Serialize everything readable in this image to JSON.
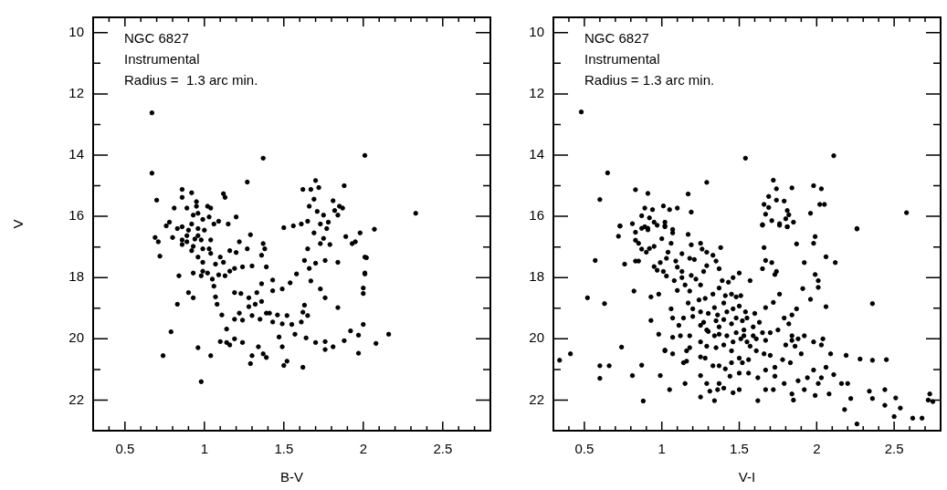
{
  "chart_data": [
    {
      "type": "scatter",
      "xlabel": "B-V",
      "ylabel": "V",
      "annotations": [
        "NGC 6827",
        "Instrumental",
        "Radius =  1.3 arc min."
      ],
      "color": "#000000",
      "marker": "circle",
      "grid": false,
      "legend": false,
      "xlim": [
        0.3,
        2.8
      ],
      "ylim": [
        23,
        9.5
      ],
      "xticks": [
        {
          "value": 0.3,
          "label": null
        },
        {
          "value": 0.4,
          "label": null
        },
        0.5,
        {
          "value": 0.6,
          "label": null
        },
        {
          "value": 0.7,
          "label": null
        },
        {
          "value": 0.8,
          "label": null
        },
        {
          "value": 0.9,
          "label": null
        },
        1,
        {
          "value": 1.1,
          "label": null
        },
        {
          "value": 1.2,
          "label": null
        },
        {
          "value": 1.3,
          "label": null
        },
        {
          "value": 1.4,
          "label": null
        },
        1.5,
        {
          "value": 1.6,
          "label": null
        },
        {
          "value": 1.7,
          "label": null
        },
        {
          "value": 1.8,
          "label": null
        },
        {
          "value": 1.9,
          "label": null
        },
        2,
        {
          "value": 2.1,
          "label": null
        },
        {
          "value": 2.2,
          "label": null
        },
        {
          "value": 2.3,
          "label": null
        },
        {
          "value": 2.4,
          "label": null
        },
        2.5,
        {
          "value": 2.6,
          "label": null
        },
        {
          "value": 2.7,
          "label": null
        }
      ],
      "yticks": [
        10,
        {
          "value": 11,
          "label": null
        },
        12,
        {
          "value": 13,
          "label": null
        },
        14,
        {
          "value": 15,
          "label": null
        },
        16,
        {
          "value": 17,
          "label": null
        },
        18,
        {
          "value": 19,
          "label": null
        },
        20,
        {
          "value": 21,
          "label": null
        },
        22
      ],
      "x": [
        0.67,
        0.67,
        1.37,
        2.01,
        1.27,
        0.7,
        0.86,
        0.92,
        1.12,
        1.7,
        1.62,
        1.67,
        1.72,
        1.88,
        2.33,
        2.07,
        0.81,
        1.69,
        1.66,
        1.71,
        1.75,
        1.65,
        1.73,
        1.78,
        1.69,
        1.75,
        1.81,
        1.82,
        1.85,
        1.87,
        1.77,
        1.73,
        1.61,
        1.5,
        1.56,
        1.84,
        1.98,
        2.02,
        2.01,
        2.0,
        1.95,
        0.69,
        0.72,
        0.84,
        0.83,
        0.79,
        0.74,
        0.96,
        0.98,
        1.04,
        0.9,
        0.93,
        1.1,
        1.14,
        1.16,
        1.19,
        1.24,
        1.29,
        1.3,
        1.34,
        1.37,
        1.39,
        1.47,
        1.49,
        1.5,
        1.52,
        1.62,
        1.57,
        1.64,
        1.7,
        1.76,
        1.76,
        1.81,
        1.88,
        1.92,
        1.97,
        1.97,
        2.08,
        2.16,
        2.0,
        2.0,
        2.01,
        2.01,
        1.93,
        1.89,
        1.84,
        1.79,
        1.76,
        1.73,
        1.76,
        1.84,
        1.7,
        1.65,
        1.66,
        1.63,
        1.67,
        1.58,
        1.54,
        1.63,
        1.65,
        1.61,
        1.62,
        1.55,
        1.49,
        1.43,
        1.39,
        1.35,
        1.3,
        1.24,
        1.22,
        1.19,
        1.14,
        1.11,
        1.08,
        1.07,
        1.06,
        1.13,
        1.19,
        1.24,
        1.3,
        1.36,
        1.39,
        1.43,
        1.36,
        1.33,
        1.28,
        1.23,
        1.19,
        1.43,
        1.49,
        1.36,
        1.32,
        1.28,
        1.41,
        1.46,
        1.52,
        1.22,
        1.27,
        1.29,
        1.37,
        1.38,
        1.16,
        1.2,
        1.1,
        1.04,
        0.99,
        0.96,
        0.92,
        0.86,
        0.89,
        0.94,
        0.98,
        1.04,
        1.0,
        0.96,
        0.9,
        0.86,
        1.02,
        0.98,
        1.05,
        1.09,
        1.12,
        1.16,
        0.93,
        0.99,
        1.07,
        1.03,
        0.89,
        0.93,
        0.96,
        0.99,
        0.92,
        0.86,
        0.83,
        1.03,
        1.04,
        1.02,
        0.95,
        0.96,
        0.89,
        0.93,
        0.99,
        1.06,
        0.8,
        0.78,
        0.76,
        1.09,
        1.15,
        1.2,
        1.13,
        0.71,
        0.86,
        0.95
      ],
      "values": [
        12.62,
        14.59,
        14.1,
        14.01,
        14.88,
        15.47,
        15.12,
        15.23,
        15.26,
        14.83,
        15.12,
        15.12,
        15.06,
        15.0,
        15.9,
        16.42,
        15.73,
        15.44,
        15.67,
        15.84,
        15.96,
        16.16,
        16.25,
        16.19,
        16.54,
        16.72,
        15.49,
        15.81,
        15.67,
        15.73,
        16.4,
        16.89,
        16.25,
        16.37,
        16.31,
        15.96,
        16.54,
        17.35,
        17.85,
        18.52,
        16.83,
        16.69,
        17.3,
        17.94,
        18.87,
        19.77,
        20.55,
        20.29,
        21.4,
        20.55,
        18.49,
        18.66,
        20.09,
        20.12,
        20.2,
        20.0,
        20.12,
        20.81,
        20.55,
        20.26,
        20.49,
        20.61,
        19.94,
        20.26,
        20.87,
        20.73,
        20.93,
        19.85,
        19.97,
        20.12,
        20.09,
        20.35,
        20.26,
        20.06,
        19.74,
        19.88,
        20.47,
        20.15,
        19.85,
        19.53,
        18.34,
        17.88,
        17.33,
        16.89,
        16.66,
        17.5,
        16.92,
        17.44,
        18.37,
        18.66,
        18.98,
        17.53,
        17.06,
        17.7,
        17.44,
        18.11,
        17.88,
        18.17,
        18.9,
        19.24,
        19.45,
        19.13,
        19.53,
        19.51,
        19.45,
        19.16,
        19.36,
        19.24,
        19.39,
        19.16,
        19.36,
        19.68,
        19.22,
        18.87,
        18.63,
        18.28,
        17.94,
        17.7,
        17.65,
        17.62,
        17.27,
        17.65,
        18.08,
        18.2,
        18.49,
        18.66,
        18.52,
        18.49,
        18.43,
        18.37,
        18.78,
        18.87,
        18.95,
        19.16,
        19.22,
        19.24,
        16.83,
        17.06,
        16.6,
        16.89,
        17.06,
        17.12,
        17.18,
        17.33,
        17.21,
        17.5,
        17.33,
        17.12,
        16.92,
        16.83,
        16.74,
        16.77,
        16.77,
        16.45,
        16.4,
        16.45,
        16.77,
        17.85,
        17.94,
        18.05,
        17.91,
        17.5,
        17.79,
        17.85,
        17.79,
        17.56,
        17.06,
        15.73,
        15.96,
        15.9,
        16.1,
        16.25,
        16.34,
        16.4,
        16.02,
        15.73,
        15.67,
        15.67,
        16.63,
        16.63,
        16.98,
        17.06,
        16.25,
        16.69,
        16.19,
        16.31,
        16.16,
        16.25,
        16.02,
        15.38,
        16.83,
        15.38,
        15.52
      ]
    },
    {
      "type": "scatter",
      "xlabel": "V-I",
      "annotations": [
        "NGC 6827",
        "Instrumental",
        "Radius = 1.3 arc min."
      ],
      "color": "#000000",
      "marker": "circle",
      "grid": false,
      "legend": false,
      "xlim": [
        0.3,
        2.8
      ],
      "ylim": [
        23,
        9.5
      ],
      "xticks": [
        {
          "value": 0.3,
          "label": null
        },
        {
          "value": 0.4,
          "label": null
        },
        0.5,
        {
          "value": 0.6,
          "label": null
        },
        {
          "value": 0.7,
          "label": null
        },
        {
          "value": 0.8,
          "label": null
        },
        {
          "value": 0.9,
          "label": null
        },
        1,
        {
          "value": 1.1,
          "label": null
        },
        {
          "value": 1.2,
          "label": null
        },
        {
          "value": 1.3,
          "label": null
        },
        {
          "value": 1.4,
          "label": null
        },
        1.5,
        {
          "value": 1.6,
          "label": null
        },
        {
          "value": 1.7,
          "label": null
        },
        {
          "value": 1.8,
          "label": null
        },
        {
          "value": 1.9,
          "label": null
        },
        2,
        {
          "value": 2.1,
          "label": null
        },
        {
          "value": 2.2,
          "label": null
        },
        {
          "value": 2.3,
          "label": null
        },
        {
          "value": 2.4,
          "label": null
        },
        2.5,
        {
          "value": 2.6,
          "label": null
        },
        {
          "value": 2.7,
          "label": null
        }
      ],
      "yticks": [
        10,
        {
          "value": 11,
          "label": null
        },
        12,
        {
          "value": 13,
          "label": null
        },
        14,
        {
          "value": 15,
          "label": null
        },
        16,
        {
          "value": 17,
          "label": null
        },
        18,
        {
          "value": 19,
          "label": null
        },
        20,
        {
          "value": 21,
          "label": null
        },
        22
      ],
      "x": [
        0.48,
        0.65,
        0.6,
        1.54,
        2.11,
        1.29,
        1.17,
        1.19,
        0.83,
        0.91,
        0.73,
        1.72,
        1.74,
        1.84,
        1.98,
        2.03,
        2.02,
        2.05,
        1.96,
        2.26,
        2.58,
        1.69,
        1.74,
        1.79,
        1.66,
        1.69,
        1.67,
        1.81,
        1.82,
        1.71,
        1.8,
        1.85,
        1.76,
        1.81,
        1.65,
        0.89,
        0.94,
        1.01,
        1.05,
        1.1,
        0.87,
        0.92,
        0.95,
        0.81,
        0.89,
        0.91,
        1.02,
        1.02,
        1.07,
        0.73,
        0.72,
        0.83,
        0.87,
        0.91,
        0.97,
        1.02,
        0.85,
        0.87,
        0.9,
        0.92,
        0.95,
        0.85,
        0.83,
        1.0,
        1.06,
        1.07,
        1.04,
        0.95,
        0.99,
        1.01,
        1.03,
        0.97,
        1.09,
        1.13,
        1.17,
        1.19,
        1.25,
        1.26,
        1.18,
        1.21,
        1.1,
        1.13,
        1.03,
        1.08,
        1.13,
        1.19,
        1.15,
        1.1,
        1.18,
        1.22,
        1.27,
        1.25,
        1.29,
        1.33,
        1.38,
        1.35,
        1.29,
        1.37,
        1.39,
        1.43,
        1.46,
        1.5,
        1.37,
        1.33,
        1.41,
        1.45,
        1.48,
        1.51,
        1.28,
        1.24,
        1.2,
        1.17,
        1.25,
        1.3,
        1.34,
        1.4,
        1.36,
        1.42,
        1.46,
        1.5,
        1.54,
        1.57,
        1.48,
        1.4,
        1.35,
        1.27,
        1.25,
        1.29,
        1.37,
        1.45,
        1.52,
        1.55,
        1.6,
        1.63,
        1.59,
        1.53,
        1.48,
        1.42,
        1.37,
        1.34,
        1.3,
        1.25,
        1.29,
        1.35,
        1.4,
        1.46,
        1.51,
        1.53,
        1.55,
        1.59,
        1.57,
        1.61,
        1.65,
        1.7,
        1.67,
        1.75,
        1.79,
        1.84,
        1.87,
        1.82,
        1.84,
        1.88,
        1.92,
        1.84,
        1.8,
        1.86,
        1.9,
        1.83,
        1.78,
        1.73,
        1.7,
        1.66,
        1.61,
        1.56,
        1.52,
        1.5,
        1.45,
        1.45,
        1.41,
        1.37,
        1.33,
        1.28,
        1.25,
        1.18,
        1.16,
        1.14,
        1.07,
        1.02,
        1.07,
        0.98,
        1.12,
        1.18,
        1.11,
        1.07,
        1.06,
        1.14,
        1.2,
        0.93,
        0.93,
        0.98,
        0.82,
        0.76,
        0.83,
        0.57,
        0.52,
        0.63,
        0.41,
        0.34,
        0.6,
        0.66,
        0.6,
        0.74,
        0.81,
        0.87,
        0.88,
        0.99,
        1.02,
        1.05,
        1.15,
        1.16,
        1.25,
        1.25,
        1.29,
        1.31,
        1.36,
        1.34,
        1.37,
        1.4,
        1.46,
        1.44,
        1.5,
        1.5,
        1.56,
        1.62,
        1.62,
        1.67,
        1.72,
        1.67,
        1.73,
        1.79,
        1.84,
        1.85,
        1.88,
        1.92,
        1.94,
        1.99,
        2.01,
        2.03,
        2.06,
        1.98,
        1.98,
        2.03,
        2.04,
        2.09,
        2.08,
        2.11,
        2.16,
        2.2,
        2.18,
        2.19,
        2.22,
        2.26,
        2.28,
        2.34,
        2.36,
        2.36,
        2.36,
        2.44,
        2.44,
        2.45,
        2.51,
        2.5,
        2.54,
        2.62,
        2.68,
        2.73,
        2.72,
        2.75,
        1.66,
        1.67,
        1.71,
        1.65,
        1.73,
        1.74,
        1.76,
        1.72,
        1.67,
        1.87,
        1.92,
        1.91,
        1.98,
        1.99,
        1.99,
        2.01,
        2.01,
        1.96,
        2.06,
        2.06,
        2.12,
        2.26,
        1.81,
        1.76,
        1.65
      ],
      "values": [
        12.59,
        14.58,
        15.45,
        14.1,
        14.02,
        14.89,
        15.27,
        15.86,
        15.13,
        15.25,
        16.32,
        14.82,
        15.1,
        15.07,
        15.0,
        15.1,
        15.61,
        15.61,
        15.9,
        16.4,
        15.88,
        15.35,
        15.47,
        15.5,
        15.61,
        15.71,
        15.93,
        15.81,
        15.95,
        16.14,
        16.08,
        16.19,
        16.24,
        16.34,
        16.27,
        15.73,
        15.78,
        15.66,
        15.78,
        15.73,
        15.98,
        16.05,
        16.19,
        16.24,
        16.34,
        16.39,
        16.19,
        16.34,
        16.43,
        16.31,
        16.65,
        16.52,
        16.39,
        16.44,
        16.29,
        16.31,
        16.88,
        17.07,
        17.17,
        17.05,
        16.98,
        17.46,
        16.78,
        16.73,
        16.88,
        16.54,
        17.17,
        17.64,
        17.51,
        17.8,
        17.37,
        17.76,
        17.46,
        17.22,
        16.59,
        16.93,
        16.88,
        17.07,
        17.37,
        17.41,
        17.66,
        17.8,
        17.95,
        18.1,
        18.0,
        17.93,
        18.24,
        18.42,
        18.44,
        18.05,
        17.8,
        18.24,
        17.17,
        17.27,
        17.02,
        17.46,
        17.61,
        17.71,
        18.1,
        18.15,
        18.0,
        17.85,
        18.34,
        18.54,
        18.59,
        18.54,
        18.63,
        18.59,
        18.68,
        18.73,
        19.02,
        18.83,
        19.12,
        19.17,
        18.98,
        18.83,
        19.22,
        19.12,
        19.02,
        18.93,
        19.12,
        18.1,
        19.32,
        19.37,
        19.41,
        19.46,
        19.56,
        19.71,
        19.61,
        19.51,
        19.41,
        19.32,
        19.17,
        19.46,
        19.61,
        19.71,
        19.8,
        19.9,
        19.85,
        19.9,
        19.76,
        20.1,
        20.24,
        20.29,
        20.2,
        20.1,
        20.0,
        19.9,
        20.1,
        19.9,
        20.24,
        20.0,
        19.8,
        19.8,
        20.05,
        19.71,
        19.32,
        19.22,
        19.02,
        19.51,
        19.9,
        20.0,
        19.9,
        20.05,
        20.2,
        20.24,
        20.49,
        20.78,
        20.68,
        20.93,
        20.54,
        20.49,
        20.39,
        20.68,
        20.78,
        20.63,
        20.39,
        20.78,
        20.98,
        20.88,
        20.88,
        20.63,
        20.59,
        20.29,
        20.39,
        20.78,
        20.49,
        20.39,
        19.95,
        19.85,
        19.9,
        19.9,
        19.56,
        19.32,
        19.02,
        19.32,
        19.27,
        19.4,
        18.63,
        18.54,
        18.44,
        17.56,
        17.46,
        17.44,
        18.66,
        18.85,
        20.49,
        20.7,
        20.88,
        20.88,
        21.29,
        20.27,
        21.2,
        20.86,
        22.03,
        21.2,
        20.37,
        21.66,
        21.46,
        20.73,
        21.2,
        21.9,
        21.46,
        21.71,
        21.66,
        22.02,
        21.46,
        21.61,
        21.76,
        21.22,
        21.66,
        21.12,
        21.12,
        21.27,
        22.02,
        21.66,
        21.66,
        21.02,
        21.22,
        21.46,
        21.8,
        22.0,
        21.37,
        21.66,
        21.27,
        21.85,
        21.46,
        21.27,
        20.93,
        21.02,
        20.1,
        20.2,
        20.0,
        20.49,
        21.8,
        21.17,
        21.46,
        21.46,
        22.31,
        20.54,
        21.95,
        22.78,
        20.66,
        21.71,
        20.7,
        21.95,
        18.85,
        21.66,
        22.17,
        20.68,
        21.93,
        22.54,
        22.26,
        22.59,
        22.59,
        21.8,
        22.0,
        22.05,
        17.02,
        17.44,
        17.51,
        17.71,
        17.9,
        17.8,
        18.54,
        18.81,
        18.98,
        16.9,
        17.51,
        18.36,
        16.88,
        16.66,
        17.9,
        18.1,
        18.32,
        18.71,
        18.95,
        17.32,
        17.51,
        16.41,
        16.34,
        16.29,
        16.29
      ]
    }
  ]
}
